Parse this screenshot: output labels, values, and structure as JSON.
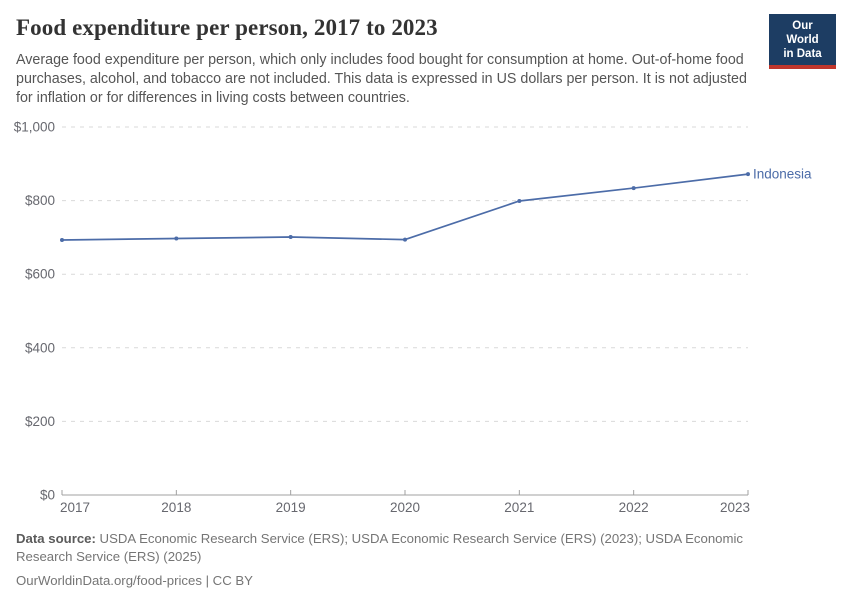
{
  "header": {
    "title": "Food expenditure per person, 2017 to 2023",
    "logo": {
      "line1": "Our World",
      "line2": "in Data",
      "bg_color": "#1d3d63",
      "bar_color": "#c0362c"
    }
  },
  "subtitle": "Average food expenditure per person, which only includes food bought for consumption at home. Out-of-home food purchases, alcohol, and tobacco are not included. This data is expressed in US dollars per person. It is not adjusted for inflation or for differences in living costs between countries.",
  "chart_data": {
    "type": "line",
    "title": "Food expenditure per person, 2017 to 2023",
    "x": [
      2017,
      2018,
      2019,
      2020,
      2021,
      2022,
      2023
    ],
    "series": [
      {
        "name": "Indonesia",
        "values": [
          693,
          697,
          701,
          694,
          799,
          834,
          872
        ],
        "color": "#4c6ca8"
      }
    ],
    "xlabel": "",
    "ylabel": "",
    "ylim": [
      0,
      1000
    ],
    "yticks": [
      0,
      200,
      400,
      600,
      800,
      1000
    ],
    "ytick_labels": [
      "$0",
      "$200",
      "$400",
      "$600",
      "$800",
      "$1,000"
    ],
    "grid": "horizontal-dashed",
    "grid_color": "#d9d9d9",
    "axis_color": "#a1a1a1",
    "legend_position": "end-of-line-label",
    "markers": "dot"
  },
  "footer": {
    "datasource_label": "Data source:",
    "datasource_text": " USDA Economic Research Service (ERS); USDA Economic Research Service (ERS) (2023); USDA Economic Research Service (ERS) (2025)",
    "license": "OurWorldinData.org/food-prices | CC BY"
  }
}
